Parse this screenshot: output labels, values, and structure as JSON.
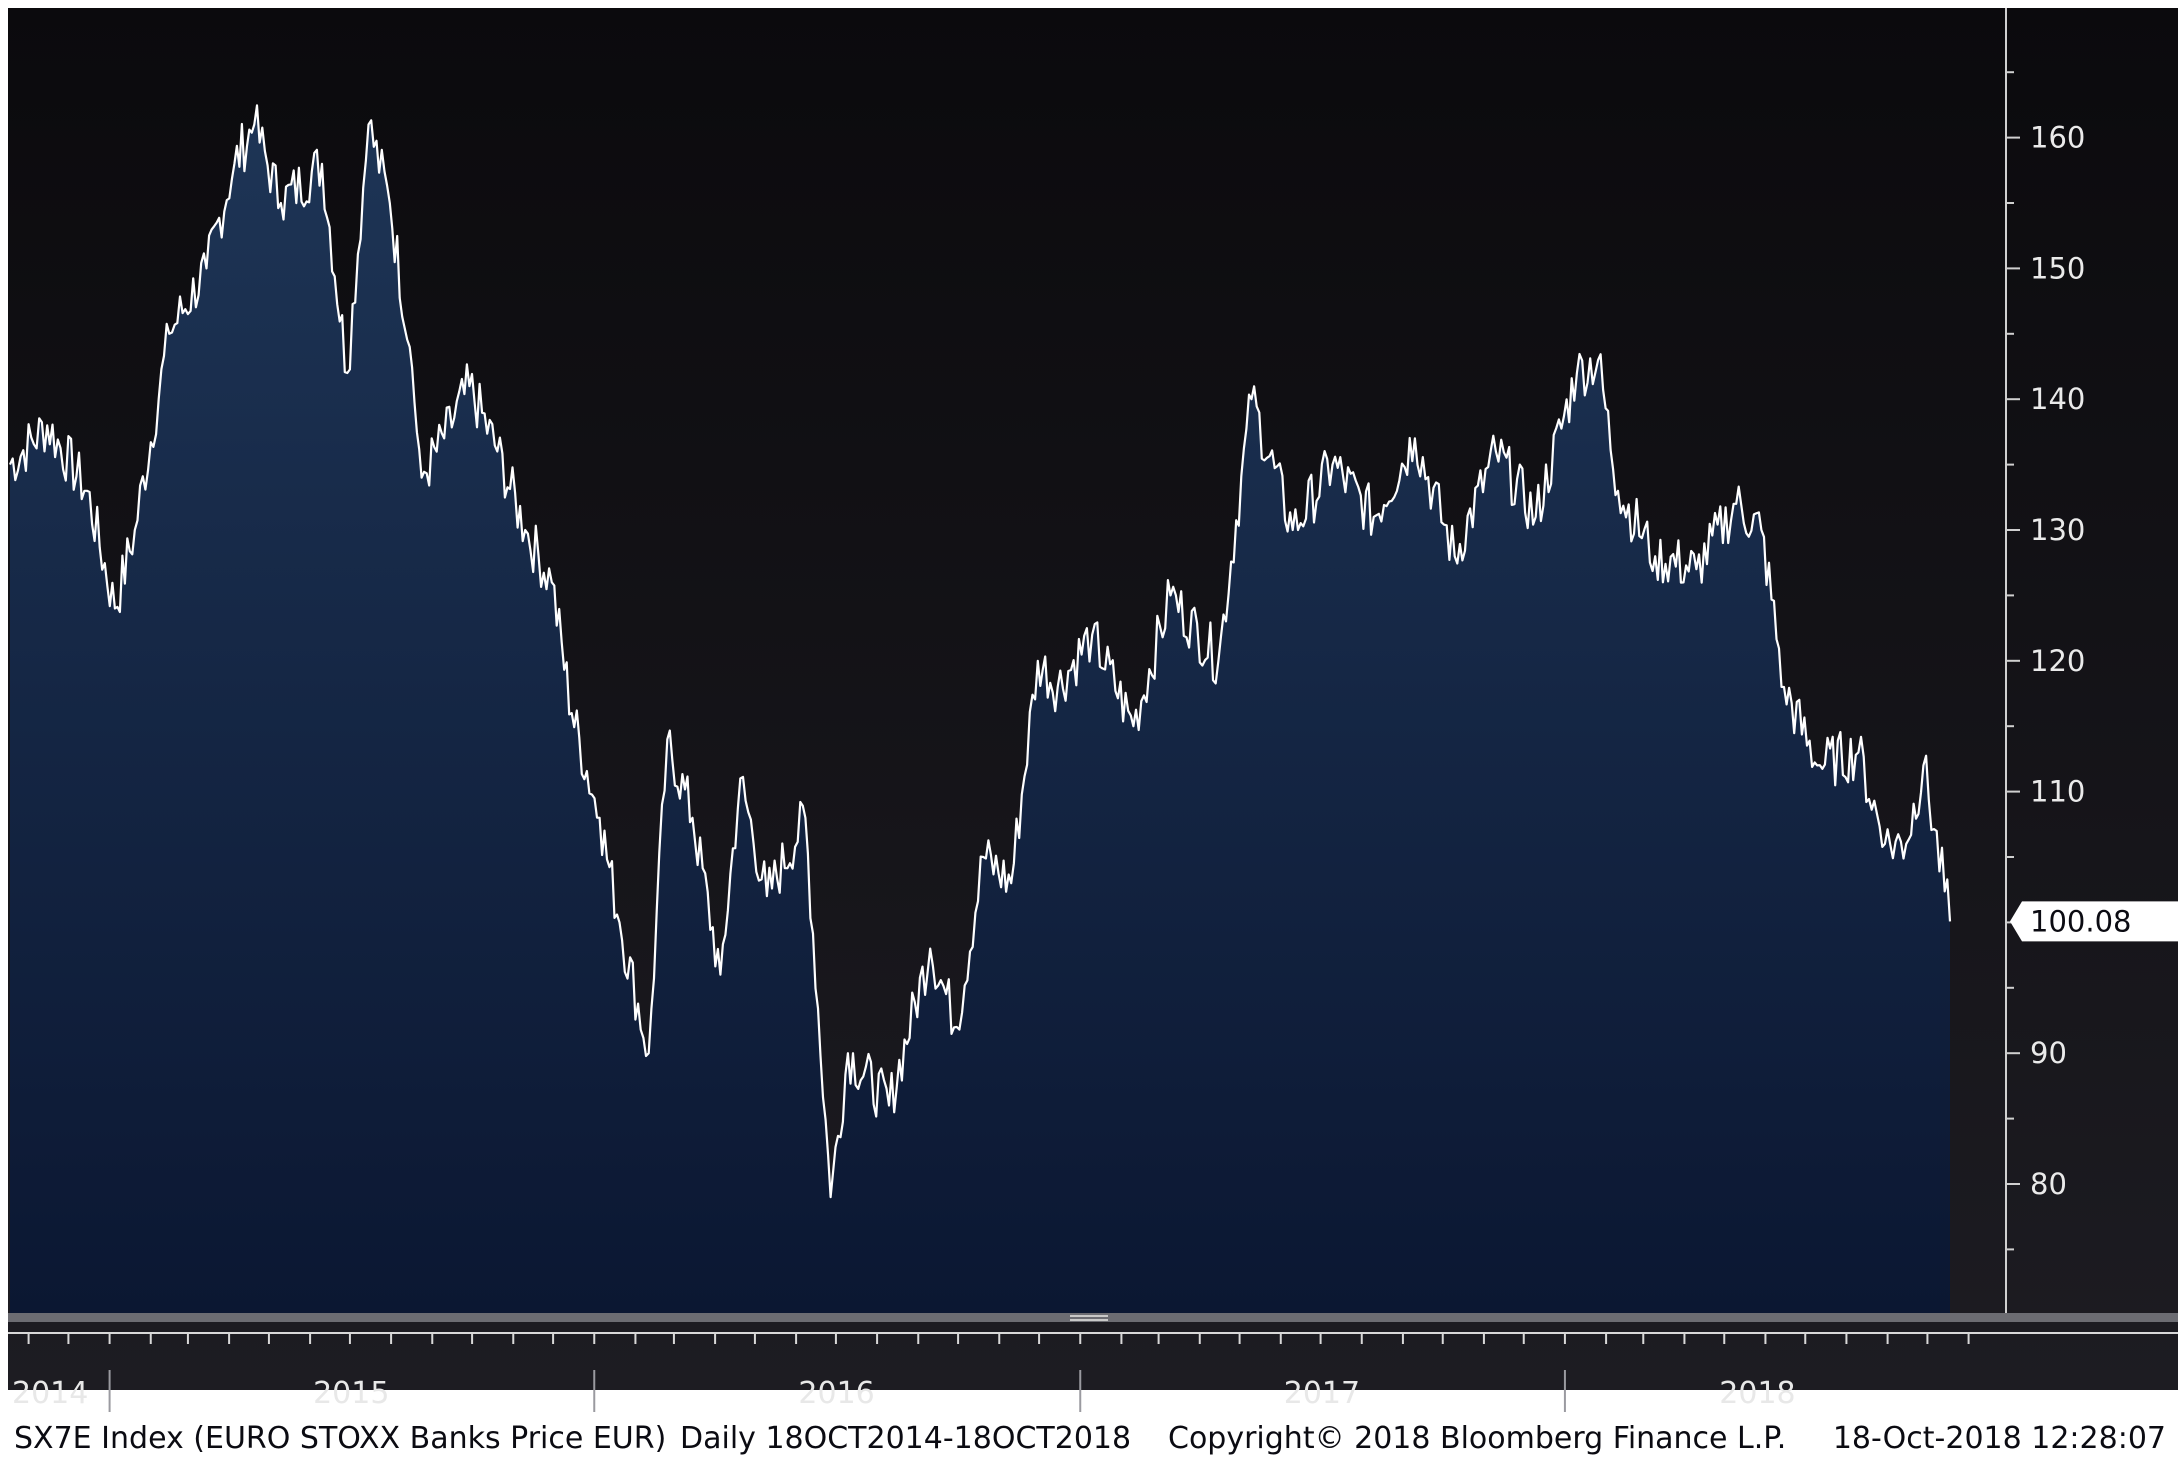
{
  "chart_data": {
    "type": "area",
    "series": [
      {
        "ticker": "SX7E Index",
        "x": [
          "2014-10-18",
          "2014-11-15",
          "2014-12-15",
          "2015-01-05",
          "2015-01-20",
          "2015-02-15",
          "2015-03-15",
          "2015-04-05",
          "2015-04-20",
          "2015-05-10",
          "2015-06-10",
          "2015-06-29",
          "2015-07-15",
          "2015-07-31",
          "2015-08-15",
          "2015-08-24",
          "2015-09-10",
          "2015-09-29",
          "2015-10-20",
          "2015-11-10",
          "2015-11-30",
          "2015-12-15",
          "2016-01-05",
          "2016-01-20",
          "2016-02-11",
          "2016-02-25",
          "2016-03-15",
          "2016-04-05",
          "2016-04-20",
          "2016-05-10",
          "2016-06-08",
          "2016-06-27",
          "2016-07-10",
          "2016-08-10",
          "2016-09-10",
          "2016-09-30",
          "2016-10-20",
          "2016-11-10",
          "2016-11-30",
          "2016-12-15",
          "2017-01-10",
          "2017-02-10",
          "2017-03-10",
          "2017-04-15",
          "2017-05-10",
          "2017-06-10",
          "2017-07-10",
          "2017-08-10",
          "2017-09-10",
          "2017-10-10",
          "2017-11-10",
          "2017-12-10",
          "2018-01-10",
          "2018-01-26",
          "2018-02-10",
          "2018-03-10",
          "2018-04-10",
          "2018-05-10",
          "2018-05-29",
          "2018-06-15",
          "2018-07-10",
          "2018-08-10",
          "2018-08-30",
          "2018-09-15",
          "2018-09-28",
          "2018-10-18"
        ],
        "values": [
          135,
          138,
          133,
          124,
          130,
          145,
          150,
          158,
          161,
          155,
          158,
          142,
          161,
          155,
          144,
          134,
          137,
          141,
          136,
          130,
          126,
          116,
          108,
          100,
          90,
          114,
          108,
          96,
          111,
          102,
          108,
          79,
          90,
          86,
          98,
          92,
          105,
          103,
          120,
          118,
          122,
          115,
          125,
          120,
          140,
          130,
          135,
          131,
          137,
          128,
          136,
          131,
          142,
          143,
          133,
          128,
          127,
          132,
          130,
          118,
          112,
          113,
          106,
          106,
          112,
          100.08
        ]
      }
    ],
    "last_value_label": "100.08",
    "y_ticks": [
      "160",
      "150",
      "140",
      "130",
      "120",
      "110",
      "90",
      "80"
    ],
    "x_year_labels": [
      "2014",
      "2015",
      "2016",
      "2017",
      "2018"
    ],
    "ylim": [
      70,
      170
    ],
    "grid": false,
    "colors": {
      "background_top": "#0b0a0d",
      "background_bottom": "#1d1c22",
      "area_top": "#1e3556",
      "area_bottom": "#0b1732",
      "line": "#ffffff"
    }
  },
  "footer": {
    "title": "SX7E Index (EURO STOXX Banks Price EUR)",
    "period": "Daily 18OCT2014-18OCT2018",
    "copyright": "Copyright© 2018 Bloomberg Finance L.P.",
    "timestamp": "18-Oct-2018 12:28:07"
  }
}
